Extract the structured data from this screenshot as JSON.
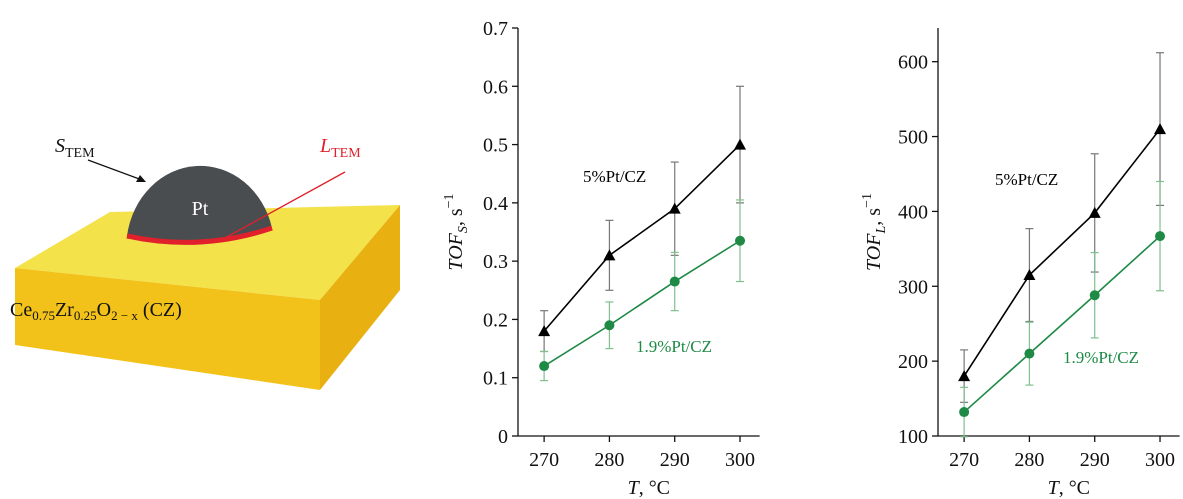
{
  "illustration": {
    "surface_label": [
      "S",
      "TEM"
    ],
    "perimeter_label": [
      "L",
      "TEM"
    ],
    "particle_label": "Pt",
    "support_label": [
      "Ce",
      "0.75",
      "Zr",
      "0.25",
      "O",
      "2 − x",
      " (CZ)"
    ]
  },
  "chart_data": [
    {
      "type": "line",
      "y_label": [
        "TOF",
        "S",
        ", s",
        "−1"
      ],
      "x_label": [
        "T",
        ", °C"
      ],
      "x": [
        270,
        280,
        290,
        300
      ],
      "xlim": [
        266,
        303
      ],
      "xticks": [
        270,
        280,
        290,
        300
      ],
      "ylim": [
        0,
        0.7
      ],
      "yticks": [
        0,
        0.1,
        0.2,
        0.3,
        0.4,
        0.5,
        0.6,
        0.7
      ],
      "series": [
        {
          "name": "5%Pt/CZ",
          "color": "#000000",
          "error_color": "#777777",
          "marker": "triangle",
          "values": [
            0.18,
            0.31,
            0.39,
            0.5
          ],
          "errors": [
            0.035,
            0.06,
            0.08,
            0.1
          ]
        },
        {
          "name": "1.9%Pt/CZ",
          "color": "#1e8a46",
          "error_color": "#7fc08f",
          "marker": "circle",
          "values": [
            0.12,
            0.19,
            0.265,
            0.335
          ],
          "errors": [
            0.025,
            0.04,
            0.05,
            0.07
          ]
        }
      ]
    },
    {
      "type": "line",
      "y_label": [
        "TOF",
        "L",
        ", s",
        "−1"
      ],
      "x_label": [
        "T",
        ", °C"
      ],
      "x": [
        270,
        280,
        290,
        300
      ],
      "xlim": [
        266,
        303
      ],
      "xticks": [
        270,
        280,
        290,
        300
      ],
      "ylim": [
        100,
        645
      ],
      "yticks": [
        100,
        200,
        300,
        400,
        500,
        600
      ],
      "series": [
        {
          "name": "5%Pt/CZ",
          "color": "#000000",
          "error_color": "#777777",
          "marker": "triangle",
          "values": [
            180,
            315,
            398,
            510
          ],
          "errors": [
            35,
            62,
            79,
            102
          ]
        },
        {
          "name": "1.9%Pt/CZ",
          "color": "#1e8a46",
          "error_color": "#7fc08f",
          "marker": "circle",
          "values": [
            132,
            210,
            288,
            367
          ],
          "errors": [
            33,
            42,
            57,
            73
          ]
        }
      ]
    }
  ]
}
